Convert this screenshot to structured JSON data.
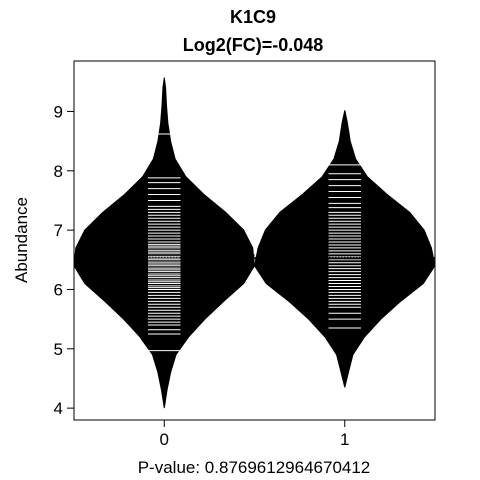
{
  "chart_data": {
    "type": "beanplot",
    "title": "K1C9",
    "subtitle": "Log2(FC)=-0.048",
    "xlabel": "P-value: 0.8769612964670412",
    "ylabel": "Abundance",
    "categories": [
      "0",
      "1"
    ],
    "ylim": [
      3.8,
      9.85
    ],
    "yticks": [
      4,
      5,
      6,
      7,
      8,
      9
    ],
    "overall_mean": 6.54,
    "groups": [
      {
        "category": "0",
        "mean": 6.58,
        "density": [
          [
            4.0,
            0.0
          ],
          [
            4.3,
            0.03
          ],
          [
            4.6,
            0.07
          ],
          [
            4.9,
            0.13
          ],
          [
            5.2,
            0.27
          ],
          [
            5.5,
            0.45
          ],
          [
            5.8,
            0.66
          ],
          [
            6.1,
            0.88
          ],
          [
            6.4,
            1.0
          ],
          [
            6.7,
            0.98
          ],
          [
            7.0,
            0.88
          ],
          [
            7.3,
            0.68
          ],
          [
            7.6,
            0.44
          ],
          [
            7.9,
            0.24
          ],
          [
            8.2,
            0.12
          ],
          [
            8.5,
            0.07
          ],
          [
            8.8,
            0.04
          ],
          [
            9.1,
            0.025
          ],
          [
            9.4,
            0.015
          ],
          [
            9.57,
            0.0
          ]
        ],
        "values": [
          4.97,
          5.25,
          5.32,
          5.4,
          5.45,
          5.5,
          5.55,
          5.6,
          5.65,
          5.7,
          5.75,
          5.8,
          5.85,
          5.9,
          5.95,
          6.0,
          6.03,
          6.06,
          6.1,
          6.13,
          6.16,
          6.2,
          6.23,
          6.26,
          6.3,
          6.33,
          6.36,
          6.4,
          6.43,
          6.46,
          6.5,
          6.53,
          6.56,
          6.6,
          6.63,
          6.66,
          6.7,
          6.73,
          6.76,
          6.8,
          6.85,
          6.9,
          6.95,
          7.0,
          7.05,
          7.1,
          7.15,
          7.2,
          7.25,
          7.3,
          7.35,
          7.4,
          7.5,
          7.6,
          7.7,
          7.8,
          7.88,
          8.62
        ]
      },
      {
        "category": "1",
        "mean": 6.52,
        "density": [
          [
            4.35,
            0.0
          ],
          [
            4.6,
            0.04
          ],
          [
            4.9,
            0.09
          ],
          [
            5.2,
            0.22
          ],
          [
            5.5,
            0.4
          ],
          [
            5.8,
            0.62
          ],
          [
            6.1,
            0.87
          ],
          [
            6.4,
            1.0
          ],
          [
            6.7,
            0.96
          ],
          [
            7.0,
            0.88
          ],
          [
            7.3,
            0.72
          ],
          [
            7.6,
            0.47
          ],
          [
            7.9,
            0.25
          ],
          [
            8.2,
            0.12
          ],
          [
            8.5,
            0.06
          ],
          [
            8.8,
            0.03
          ],
          [
            9.02,
            0.0
          ]
        ],
        "values": [
          5.35,
          5.5,
          5.6,
          5.7,
          5.75,
          5.8,
          5.85,
          5.9,
          5.95,
          6.0,
          6.05,
          6.1,
          6.15,
          6.2,
          6.25,
          6.3,
          6.35,
          6.4,
          6.45,
          6.5,
          6.55,
          6.6,
          6.65,
          6.7,
          6.75,
          6.8,
          6.85,
          6.9,
          6.95,
          7.0,
          7.05,
          7.1,
          7.15,
          7.2,
          7.25,
          7.3,
          7.38,
          7.45,
          7.55,
          7.65,
          7.75,
          7.85,
          7.95,
          8.1
        ]
      }
    ]
  }
}
